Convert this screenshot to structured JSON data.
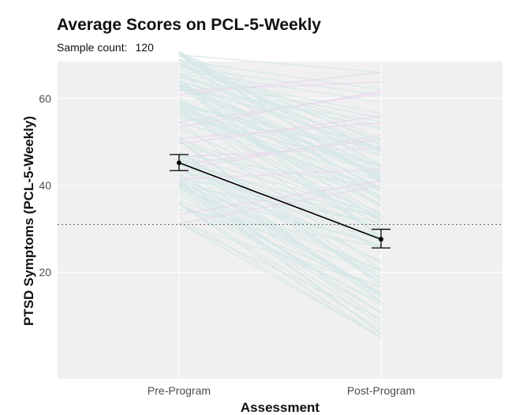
{
  "chart_data": {
    "type": "line",
    "title": "Average Scores on PCL-5-Weekly",
    "subtitle_label": "Sample count:",
    "sample_count": "120",
    "xlabel": "Assessment",
    "ylabel": "PTSD Symptoms (PCL-5-Weekly)",
    "categories": [
      "Pre-Program",
      "Post-Program"
    ],
    "ylim": [
      -4.5,
      68.5
    ],
    "yticks": [
      20,
      40,
      60
    ],
    "reference_line": 31,
    "mean_series": {
      "name": "Mean",
      "values": [
        45.2,
        27.6
      ],
      "error_low": [
        43.4,
        25.6
      ],
      "error_high": [
        47.1,
        29.9
      ]
    },
    "individual_series_count": 120,
    "colors": {
      "panel": "#f0f0f0",
      "individual_decrease": "#d5e8e6",
      "individual_increase": "#ead6ec",
      "mean": "#000000",
      "reference": "#666666"
    }
  }
}
